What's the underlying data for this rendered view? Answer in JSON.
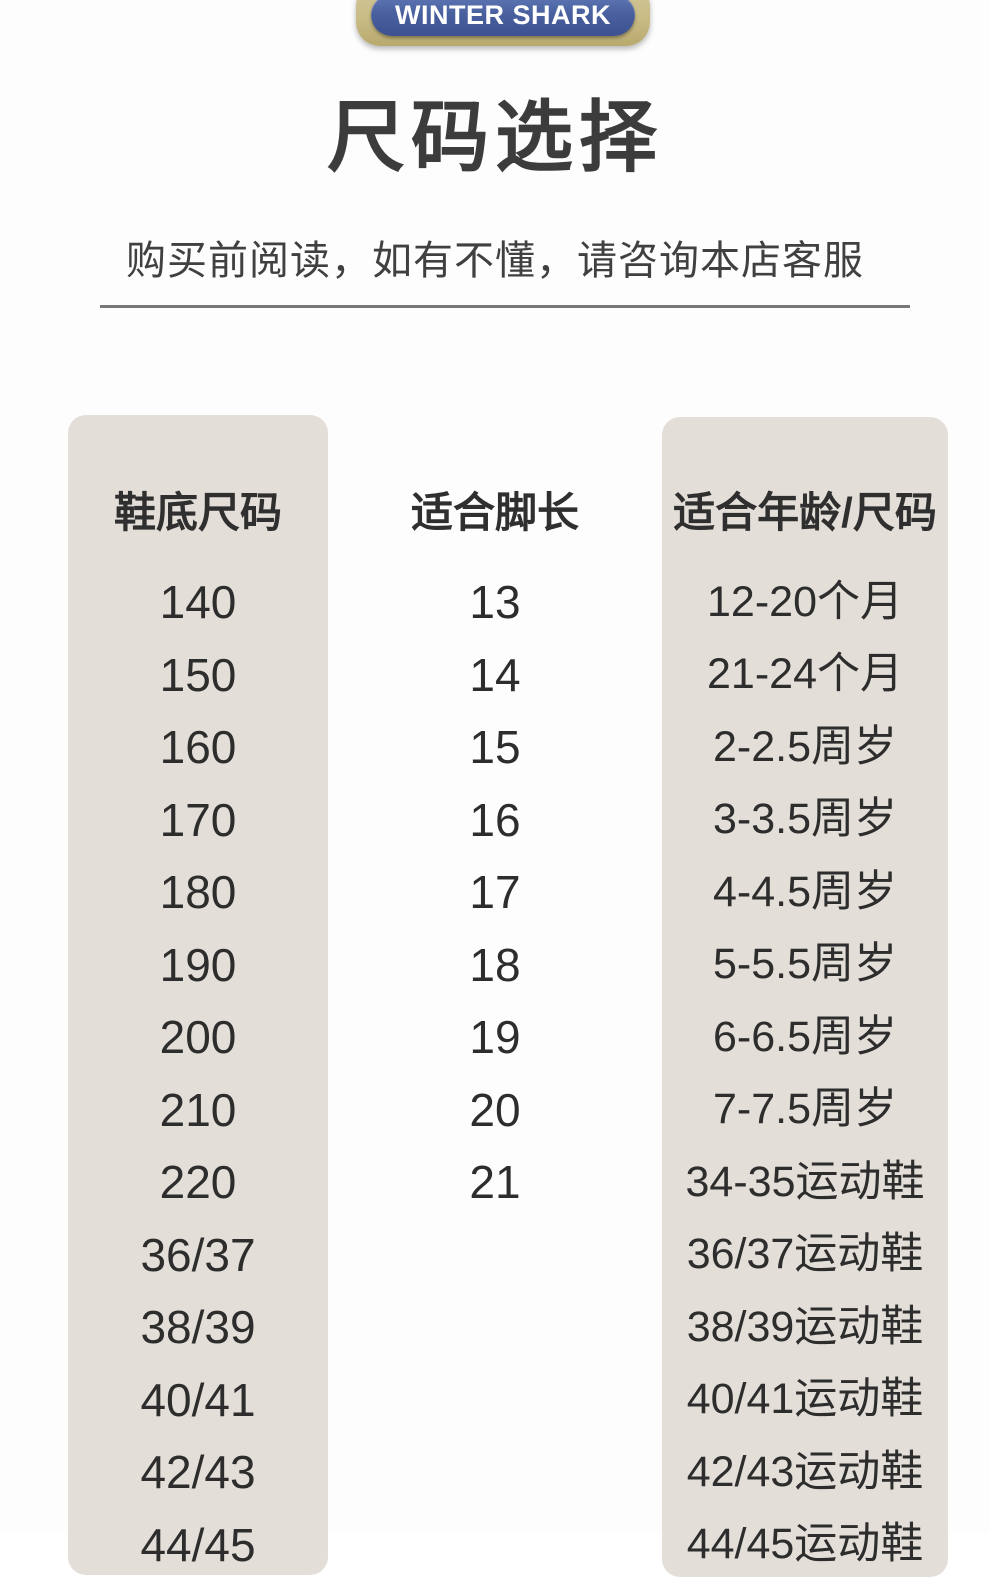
{
  "badge": {
    "label": "WINTER SHARK"
  },
  "title": "尺码选择",
  "subtitle": "购买前阅读，如有不懂，请咨询本店客服",
  "size_chart": {
    "columns": [
      "鞋底尺码",
      "适合脚长",
      "适合年龄/尺码"
    ],
    "rows": [
      {
        "sole": "140",
        "foot": "13",
        "age": "12-20个月"
      },
      {
        "sole": "150",
        "foot": "14",
        "age": "21-24个月"
      },
      {
        "sole": "160",
        "foot": "15",
        "age": "2-2.5周岁"
      },
      {
        "sole": "170",
        "foot": "16",
        "age": "3-3.5周岁"
      },
      {
        "sole": "180",
        "foot": "17",
        "age": "4-4.5周岁"
      },
      {
        "sole": "190",
        "foot": "18",
        "age": "5-5.5周岁"
      },
      {
        "sole": "200",
        "foot": "19",
        "age": "6-6.5周岁"
      },
      {
        "sole": "210",
        "foot": "20",
        "age": "7-7.5周岁"
      },
      {
        "sole": "220",
        "foot": "21",
        "age": "34-35运动鞋"
      },
      {
        "sole": "36/37",
        "foot": "",
        "age": "36/37运动鞋"
      },
      {
        "sole": "38/39",
        "foot": "",
        "age": "38/39运动鞋"
      },
      {
        "sole": "40/41",
        "foot": "",
        "age": "40/41运动鞋"
      },
      {
        "sole": "42/43",
        "foot": "",
        "age": "42/43运动鞋"
      },
      {
        "sole": "44/45",
        "foot": "",
        "age": "44/45运动鞋"
      }
    ]
  },
  "colors": {
    "badge_gold": "#c9bc86",
    "badge_blue": "#47609f",
    "panel_beige": "#e3ded8",
    "text_dark": "#2f2f2f",
    "divider_gray": "#787878"
  }
}
